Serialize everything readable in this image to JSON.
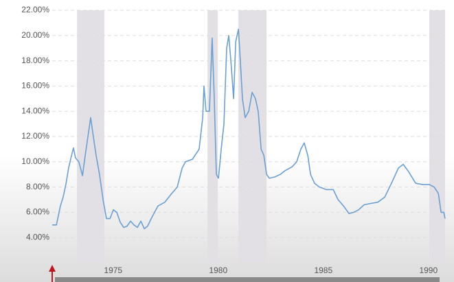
{
  "chart_data": {
    "type": "line",
    "x": [
      1972.1,
      1972.3,
      1972.49,
      1972.62,
      1972.75,
      1972.88,
      1973.02,
      1973.11,
      1973.21,
      1973.37,
      1973.54,
      1973.67,
      1973.8,
      1973.93,
      1974.03,
      1974.19,
      1974.35,
      1974.52,
      1974.68,
      1974.85,
      1975.01,
      1975.17,
      1975.34,
      1975.5,
      1975.66,
      1975.83,
      1975.99,
      1976.15,
      1976.32,
      1976.48,
      1976.64,
      1976.81,
      1976.97,
      1977.13,
      1977.46,
      1977.79,
      1978.05,
      1978.28,
      1978.44,
      1978.77,
      1979.09,
      1979.26,
      1979.32,
      1979.42,
      1979.58,
      1979.71,
      1979.81,
      1979.91,
      1980.01,
      1980.14,
      1980.27,
      1980.4,
      1980.5,
      1980.6,
      1980.73,
      1980.83,
      1980.96,
      1981.05,
      1981.15,
      1981.28,
      1981.45,
      1981.61,
      1981.77,
      1981.9,
      1982.04,
      1982.17,
      1982.3,
      1982.43,
      1982.69,
      1982.95,
      1983.18,
      1983.51,
      1983.73,
      1983.93,
      1984.09,
      1984.26,
      1984.39,
      1984.58,
      1984.81,
      1985.14,
      1985.47,
      1985.7,
      1985.96,
      1986.22,
      1986.45,
      1986.68,
      1986.94,
      1987.26,
      1987.59,
      1987.92,
      1988.24,
      1988.57,
      1988.8,
      1989.06,
      1989.39,
      1989.71,
      1990.04,
      1990.27,
      1990.47,
      1990.6,
      1990.73,
      1990.79
    ],
    "values": [
      5.0,
      5.0,
      6.5,
      7.2,
      8.2,
      9.5,
      10.5,
      11.1,
      10.3,
      10.0,
      8.9,
      10.5,
      12.0,
      13.5,
      12.3,
      10.5,
      9.0,
      7.0,
      5.5,
      5.5,
      6.2,
      6.0,
      5.2,
      4.8,
      4.9,
      5.3,
      5.0,
      4.8,
      5.3,
      4.7,
      4.9,
      5.5,
      6.0,
      6.5,
      6.8,
      7.5,
      8.0,
      9.5,
      10.0,
      10.2,
      11.0,
      13.5,
      16.0,
      14.0,
      14.0,
      19.8,
      15.0,
      9.0,
      8.7,
      11.0,
      13.0,
      19.0,
      20.0,
      18.0,
      15.0,
      19.5,
      20.5,
      18.0,
      15.0,
      13.5,
      14.0,
      15.5,
      15.0,
      14.0,
      11.0,
      10.5,
      9.0,
      8.7,
      8.8,
      9.0,
      9.3,
      9.6,
      10.0,
      11.0,
      11.5,
      10.5,
      9.0,
      8.3,
      8.0,
      7.8,
      7.8,
      7.0,
      6.5,
      5.9,
      6.0,
      6.2,
      6.6,
      6.7,
      6.8,
      7.2,
      8.3,
      9.5,
      9.8,
      9.2,
      8.3,
      8.2,
      8.2,
      8.0,
      7.5,
      6.0,
      6.0,
      5.5
    ],
    "color": "#6a9fd4",
    "recessions": [
      [
        1973.28,
        1974.58
      ],
      [
        1979.49,
        1979.98
      ],
      [
        1980.96,
        1982.3
      ],
      [
        1990.04,
        1990.79
      ]
    ],
    "recession_color": "#e2e0e4",
    "xlim": [
      1972.1,
      1990.8
    ],
    "xticks": [
      1975,
      1980,
      1985,
      1990
    ],
    "ylim": [
      2,
      22
    ],
    "yticks": [
      {
        "value": 4,
        "label": "4.00%"
      },
      {
        "value": 6,
        "label": "6.00%"
      },
      {
        "value": 8,
        "label": "8.00%"
      },
      {
        "value": 10,
        "label": "10.00%"
      },
      {
        "value": 12,
        "label": "12.00%"
      },
      {
        "value": 14,
        "label": "14.00%"
      },
      {
        "value": 16,
        "label": "16.00%"
      },
      {
        "value": 18,
        "label": "18.00%"
      },
      {
        "value": 20,
        "label": "20.00%"
      },
      {
        "value": 22,
        "label": "22.00%"
      }
    ],
    "grid": true
  }
}
